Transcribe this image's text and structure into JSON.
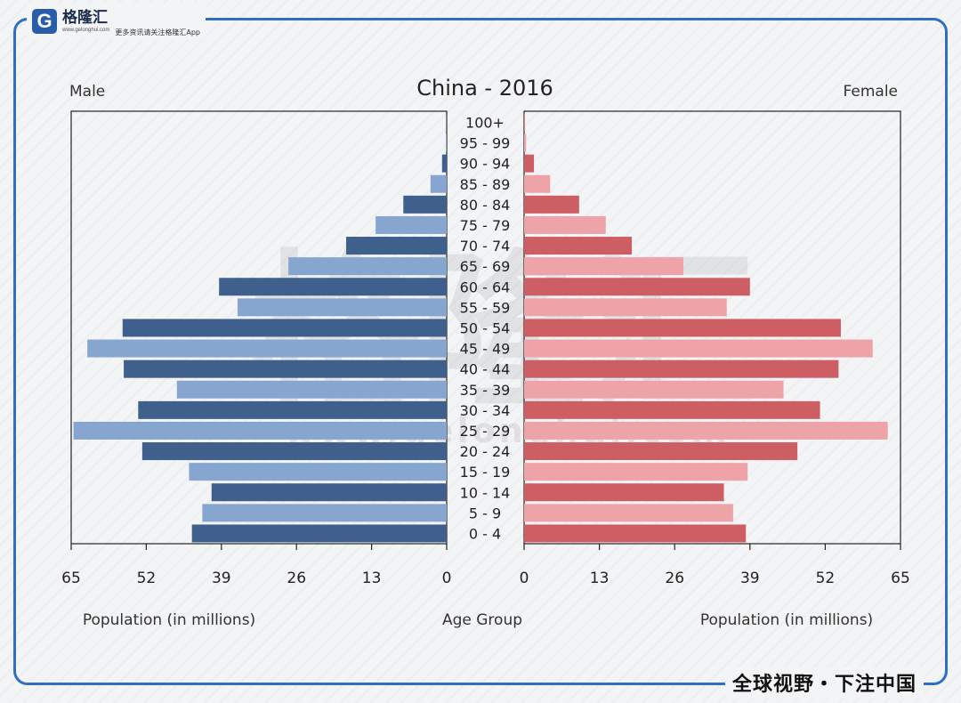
{
  "branding": {
    "logo_mark": "G",
    "logo_name": "格隆汇",
    "logo_url": "www.gelonghui.com",
    "slogan": "更多资讯请关注格隆汇App",
    "footer": "全球视野・下注中国",
    "watermark_text": "格隆汇",
    "watermark_url": "www.gelonghui.com"
  },
  "colors": {
    "frame": "#2f6fc1",
    "male_dark": "#3f5f8c",
    "male_light": "#87a6cf",
    "female_dark": "#cd5f64",
    "female_light": "#eea3a8"
  },
  "chart_data": {
    "type": "bar",
    "orientation": "horizontal",
    "title": "China - 2016",
    "left_label": "Male",
    "right_label": "Female",
    "xlabel_left": "Population (in millions)",
    "xlabel_center": "Age Group",
    "xlabel_right": "Population (in millions)",
    "xlim": [
      0,
      65
    ],
    "xticks": [
      0,
      13,
      26,
      39,
      52,
      65
    ],
    "categories": [
      "0 - 4",
      "5 - 9",
      "10 - 14",
      "15 - 19",
      "20 - 24",
      "25 - 29",
      "30 - 34",
      "35 - 39",
      "40 - 44",
      "45 - 49",
      "50 - 54",
      "55 - 59",
      "60 - 64",
      "65 - 69",
      "70 - 74",
      "75 - 79",
      "80 - 84",
      "85 - 89",
      "90 - 94",
      "95 - 99",
      "100+"
    ],
    "series": [
      {
        "name": "Male",
        "values": [
          44.1,
          42.3,
          40.7,
          44.6,
          52.7,
          64.6,
          53.4,
          46.7,
          55.9,
          62.2,
          56.1,
          36.2,
          39.4,
          27.4,
          17.4,
          12.3,
          7.5,
          2.8,
          0.8,
          0.15,
          0.05
        ]
      },
      {
        "name": "Female",
        "values": [
          38.3,
          36.1,
          34.5,
          38.6,
          47.2,
          62.8,
          51.1,
          44.8,
          54.3,
          60.2,
          54.7,
          35.0,
          39.0,
          27.5,
          18.6,
          14.1,
          9.5,
          4.5,
          1.7,
          0.35,
          0.1
        ]
      }
    ]
  }
}
